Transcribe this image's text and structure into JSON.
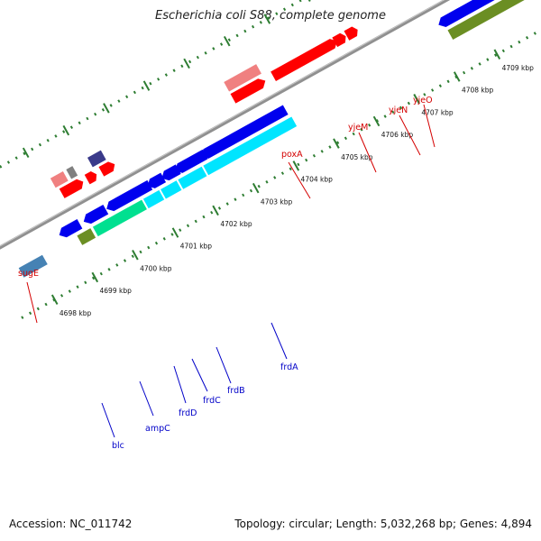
{
  "title": "Escherichia coli S88, complete genome",
  "footer": {
    "accession": "Accession: NC_011742",
    "summary": "Topology: circular; Length: 5,032,268 bp; Genes: 4,894"
  },
  "scale": {
    "kbp_labels": [
      "4698 kbp",
      "4699 kbp",
      "4700 kbp",
      "4701 kbp",
      "4702 kbp",
      "4703 kbp",
      "4704 kbp",
      "4705 kbp",
      "4706 kbp",
      "4707 kbp",
      "4708 kbp",
      "4709 kbp"
    ]
  },
  "genes_top": [
    "sugE",
    "poxA",
    "yjeM",
    "yjeN",
    "yjeO"
  ],
  "genes_bottom": [
    "blc",
    "ampC",
    "frdD",
    "frdC",
    "frdB",
    "frdA"
  ],
  "colors": {
    "red": "#ff0000",
    "pink": "#f08080",
    "blue": "#0000ee",
    "cyan": "#00e5ff",
    "green": "#00e090",
    "olive": "#6b8e23",
    "navy": "#3a3a8a",
    "steel": "#4682b4",
    "gray": "#808080",
    "backbone": "#909090",
    "tick": "#2e7d32",
    "label_top": "#d40000",
    "label_bottom": "#0000c8"
  }
}
